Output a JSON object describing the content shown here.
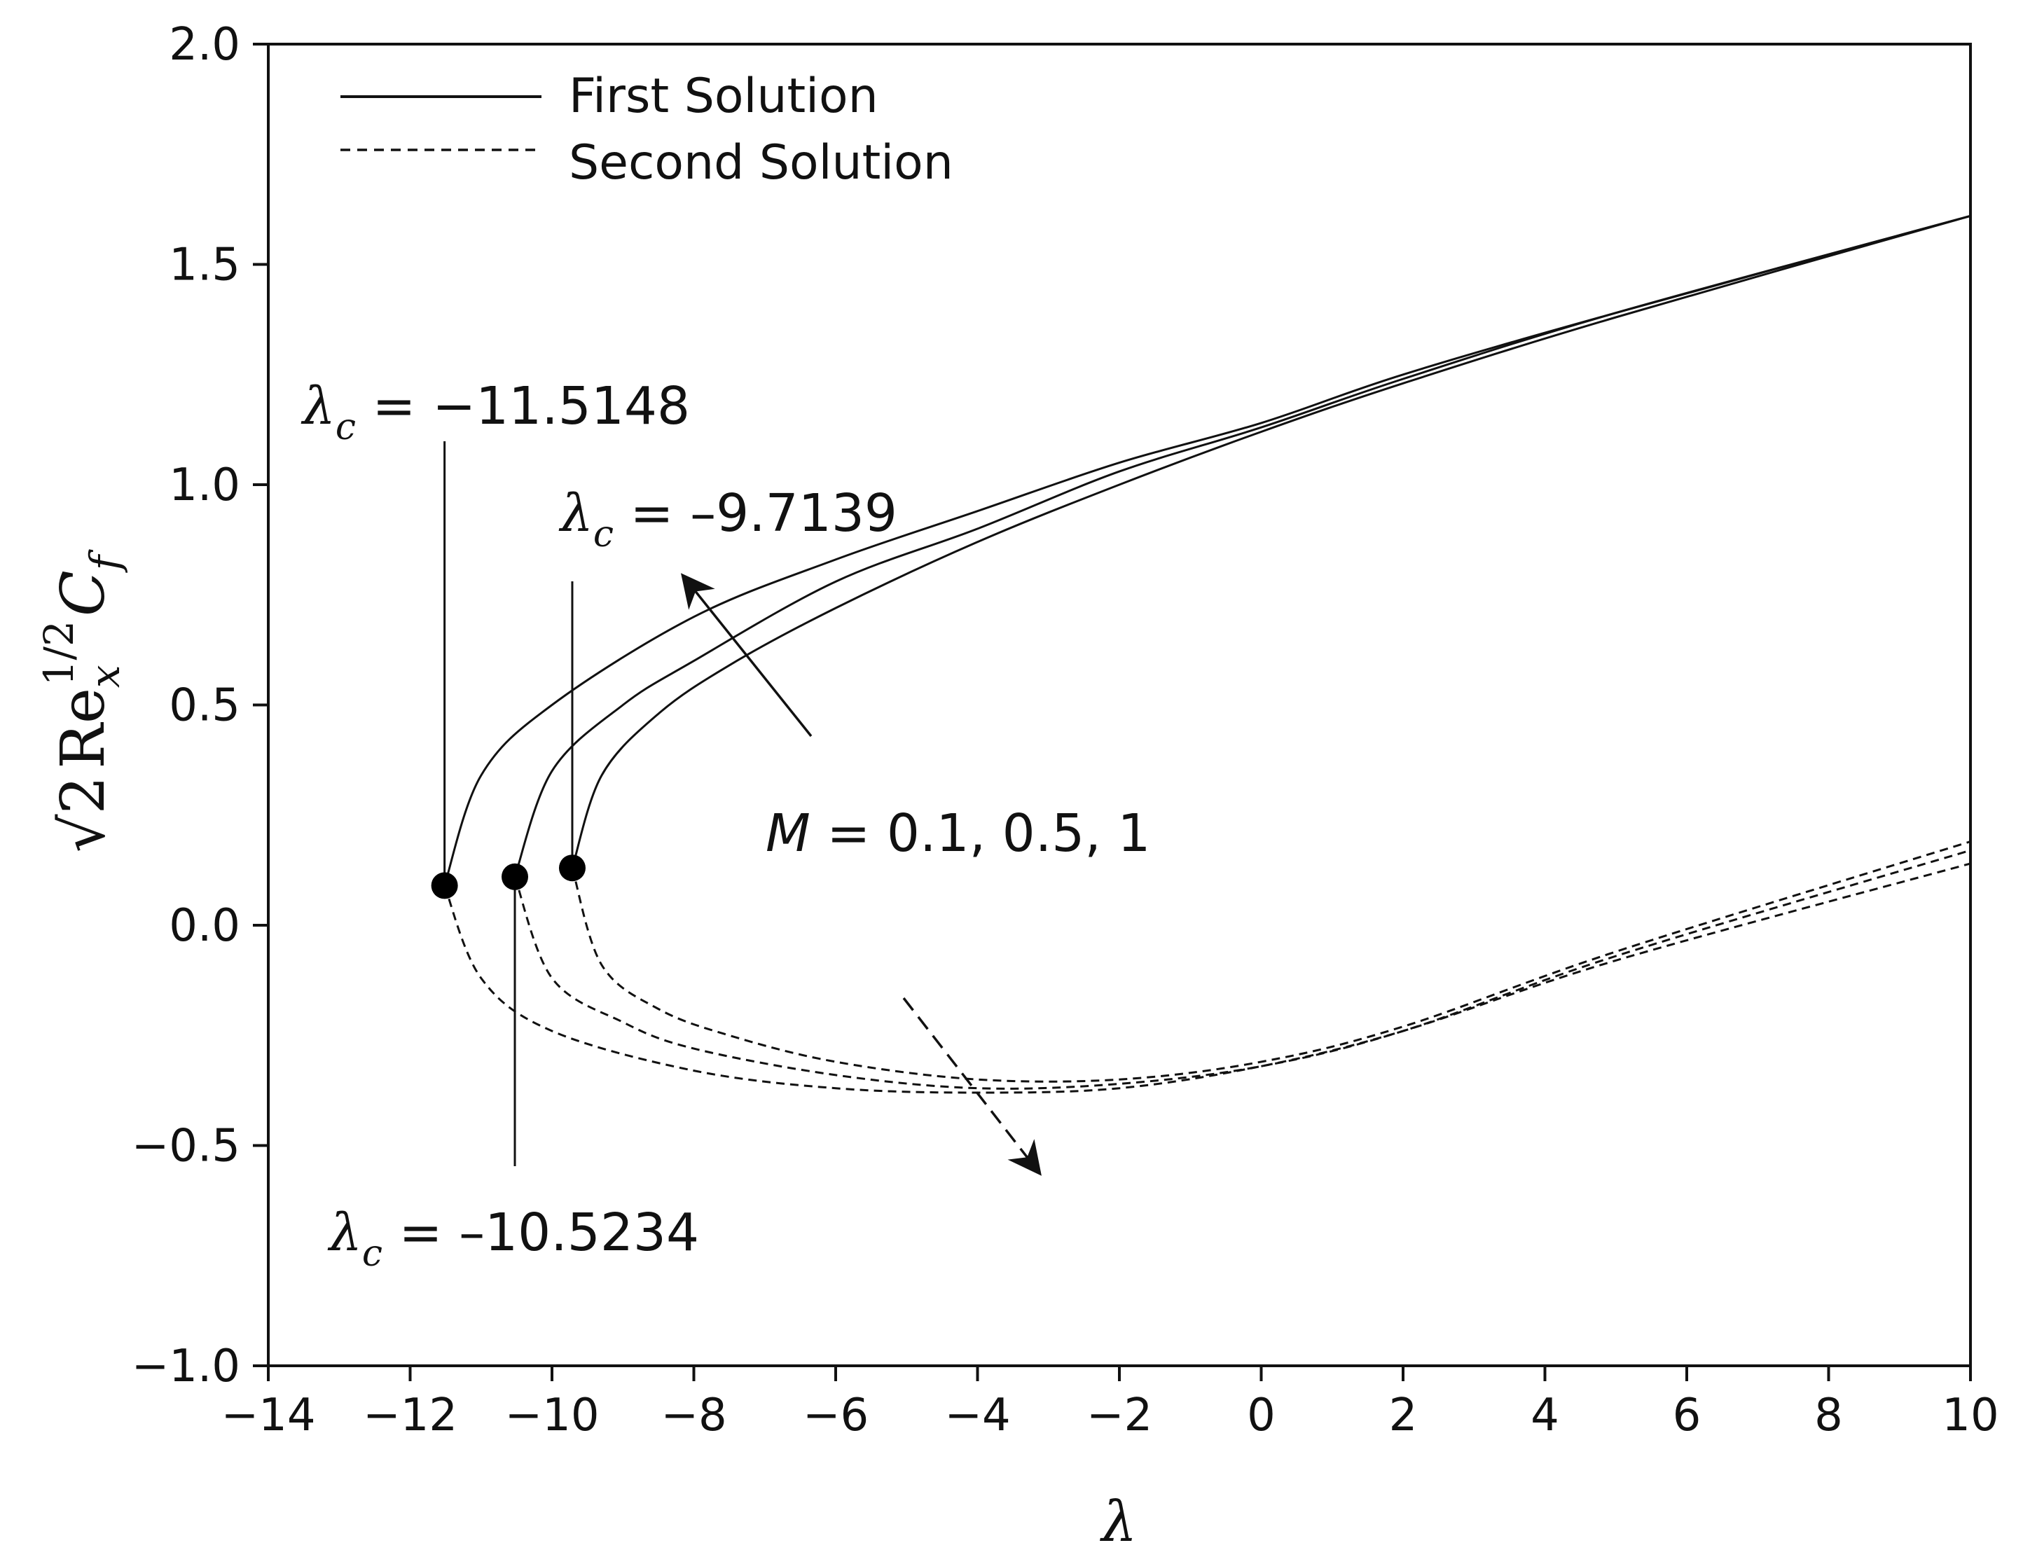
{
  "chart_data": {
    "type": "line",
    "title": "",
    "xlabel": "λ",
    "ylabel": {
      "radical": "√2",
      "re": "Re",
      "re_sub": "x",
      "re_sup": "1/2",
      "cf": "C",
      "cf_sub": "f"
    },
    "xlim": [
      -14,
      10
    ],
    "ylim": [
      -1.0,
      2.0
    ],
    "xticks": [
      -14,
      -12,
      -10,
      -8,
      -6,
      -4,
      -2,
      0,
      2,
      4,
      6,
      8,
      10
    ],
    "xtick_labels": [
      "−14",
      "−12",
      "−10",
      "−8",
      "−6",
      "−4",
      "−2",
      "0",
      "2",
      "4",
      "6",
      "8",
      "10"
    ],
    "yticks": [
      -1.0,
      -0.5,
      0.0,
      0.5,
      1.0,
      1.5,
      2.0
    ],
    "ytick_labels": [
      "−1.0",
      "−0.5",
      "0.0",
      "0.5",
      "1.0",
      "1.5",
      "2.0"
    ],
    "grid": false,
    "legend": {
      "position": "top-left",
      "entries": [
        {
          "label": "First Solution",
          "style": "solid"
        },
        {
          "label": "Second Solution",
          "style": "dashed"
        }
      ]
    },
    "series": [
      {
        "name": "M = 0.1",
        "critical": {
          "x": -11.5148,
          "y": 0.09
        },
        "first_solution": {
          "x": [
            -11.5148,
            -11.0,
            -10.0,
            -8.0,
            -6.0,
            -4.0,
            -2.0,
            0.0,
            2.0,
            5.0,
            10.0
          ],
          "y": [
            0.09,
            0.34,
            0.5,
            0.7,
            0.83,
            0.94,
            1.05,
            1.14,
            1.25,
            1.39,
            1.61
          ]
        },
        "second_solution": {
          "x": [
            -11.5148,
            -11.0,
            -10.0,
            -8.0,
            -6.0,
            -4.0,
            -2.0,
            0.0,
            2.0,
            5.0,
            10.0
          ],
          "y": [
            0.09,
            -0.12,
            -0.24,
            -0.33,
            -0.37,
            -0.38,
            -0.37,
            -0.32,
            -0.24,
            -0.08,
            0.14
          ]
        }
      },
      {
        "name": "M = 0.5",
        "critical": {
          "x": -10.5234,
          "y": 0.11
        },
        "first_solution": {
          "x": [
            -10.5234,
            -10.0,
            -9.0,
            -8.0,
            -6.0,
            -4.0,
            -2.0,
            0.0,
            2.0,
            5.0,
            10.0
          ],
          "y": [
            0.11,
            0.35,
            0.5,
            0.6,
            0.78,
            0.9,
            1.03,
            1.13,
            1.24,
            1.39,
            1.61
          ]
        },
        "second_solution": {
          "x": [
            -10.5234,
            -10.0,
            -9.0,
            -8.0,
            -6.0,
            -4.0,
            -2.0,
            0.0,
            2.0,
            5.0,
            10.0
          ],
          "y": [
            0.11,
            -0.12,
            -0.22,
            -0.28,
            -0.34,
            -0.37,
            -0.36,
            -0.32,
            -0.24,
            -0.07,
            0.17
          ]
        }
      },
      {
        "name": "M = 1",
        "critical": {
          "x": -9.7139,
          "y": 0.13
        },
        "first_solution": {
          "x": [
            -9.7139,
            -9.3,
            -8.5,
            -7.5,
            -6.0,
            -4.0,
            -2.0,
            0.0,
            2.0,
            5.0,
            10.0
          ],
          "y": [
            0.13,
            0.34,
            0.48,
            0.59,
            0.72,
            0.87,
            1.0,
            1.12,
            1.23,
            1.38,
            1.61
          ]
        },
        "second_solution": {
          "x": [
            -9.7139,
            -9.3,
            -8.5,
            -7.5,
            -6.0,
            -4.0,
            -2.0,
            0.0,
            2.0,
            5.0,
            10.0
          ],
          "y": [
            0.13,
            -0.09,
            -0.19,
            -0.25,
            -0.31,
            -0.35,
            -0.35,
            -0.31,
            -0.23,
            -0.06,
            0.19
          ]
        }
      }
    ],
    "annotations": {
      "crit_a": {
        "symbol": "λ",
        "sub": "c",
        "value": " = −11.5148"
      },
      "crit_b": {
        "symbol": "λ",
        "sub": "c",
        "value": " = –9.7139"
      },
      "crit_c": {
        "symbol": "λ",
        "sub": "c",
        "value": " = –10.5234"
      },
      "m_label": {
        "symbol": "M",
        "value": " = 0.1, 0.5, 1"
      }
    }
  }
}
